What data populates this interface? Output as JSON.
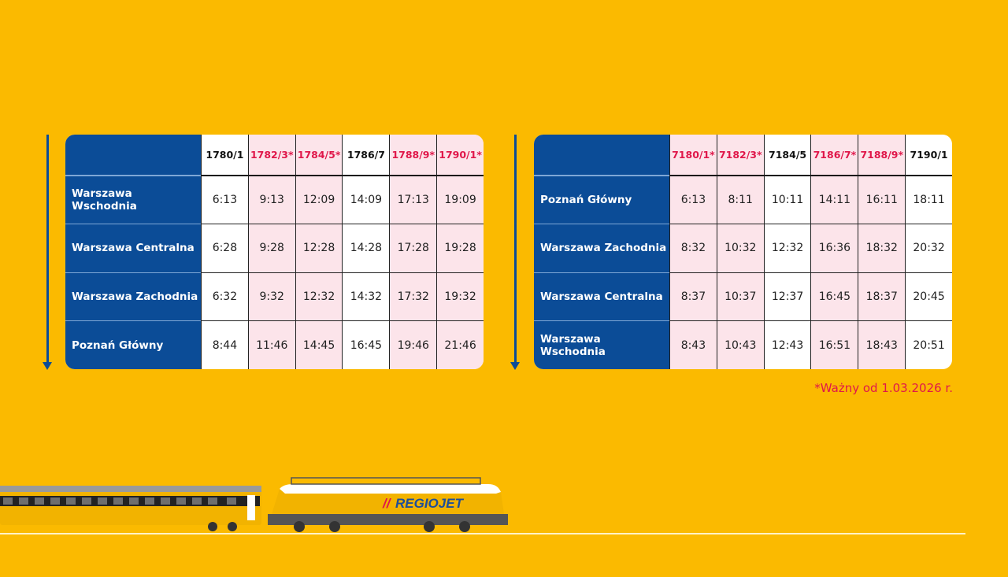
{
  "colors": {
    "background": "#FBBA00",
    "station_blue": "#0B4C97",
    "highlight_pink": "#FCE4EA",
    "accent_red": "#E0174A"
  },
  "timetables": [
    {
      "trains": [
        {
          "label": "1780/1",
          "starred": false
        },
        {
          "label": "1782/3*",
          "starred": true
        },
        {
          "label": "1784/5*",
          "starred": true
        },
        {
          "label": "1786/7",
          "starred": false
        },
        {
          "label": "1788/9*",
          "starred": true
        },
        {
          "label": "1790/1*",
          "starred": true
        }
      ],
      "rows": [
        {
          "station": "Warszawa Wschodnia",
          "times": [
            "6:13",
            "9:13",
            "12:09",
            "14:09",
            "17:13",
            "19:09"
          ]
        },
        {
          "station": "Warszawa Centralna",
          "times": [
            "6:28",
            "9:28",
            "12:28",
            "14:28",
            "17:28",
            "19:28"
          ]
        },
        {
          "station": "Warszawa Zachodnia",
          "times": [
            "6:32",
            "9:32",
            "12:32",
            "14:32",
            "17:32",
            "19:32"
          ]
        },
        {
          "station": "Poznań Główny",
          "times": [
            "8:44",
            "11:46",
            "14:45",
            "16:45",
            "19:46",
            "21:46"
          ]
        }
      ]
    },
    {
      "trains": [
        {
          "label": "7180/1*",
          "starred": true
        },
        {
          "label": "7182/3*",
          "starred": true
        },
        {
          "label": "7184/5",
          "starred": false
        },
        {
          "label": "7186/7*",
          "starred": true
        },
        {
          "label": "7188/9*",
          "starred": true
        },
        {
          "label": "7190/1",
          "starred": false
        }
      ],
      "rows": [
        {
          "station": "Poznań Główny",
          "times": [
            "6:13",
            "8:11",
            "10:11",
            "14:11",
            "16:11",
            "18:11"
          ]
        },
        {
          "station": "Warszawa Zachodnia",
          "times": [
            "8:32",
            "10:32",
            "12:32",
            "16:36",
            "18:32",
            "20:32"
          ]
        },
        {
          "station": "Warszawa Centralna",
          "times": [
            "8:37",
            "10:37",
            "12:37",
            "16:45",
            "18:37",
            "20:45"
          ]
        },
        {
          "station": "Warszawa Wschodnia",
          "times": [
            "8:43",
            "10:43",
            "12:43",
            "16:51",
            "18:43",
            "20:51"
          ]
        }
      ]
    }
  ],
  "footnote": "*Ważny od 1.03.2026 r.",
  "logo": {
    "text": "REGIOJET"
  }
}
